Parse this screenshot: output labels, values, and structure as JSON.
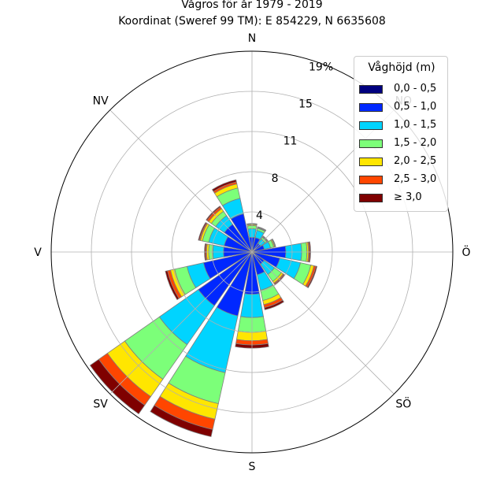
{
  "title_line1": "Vågros för år 1979 - 2019",
  "title_line2": "Koordinat (Sweref 99 TM): E 854229, N 6635608",
  "chart_data": {
    "type": "windrose",
    "direction_labels": [
      "N",
      "NO",
      "Ö",
      "SÖ",
      "S",
      "SV",
      "V",
      "NV"
    ],
    "radial_ticks": [
      "4",
      "8",
      "11",
      "15",
      "19%"
    ],
    "radial_tick_values": [
      3.8,
      7.6,
      11.4,
      15.2,
      19
    ],
    "rmax": 19,
    "grid": true,
    "legend": {
      "title": "Våghöjd (m)",
      "position": "top-right",
      "items": [
        {
          "label": "0,0 - 0,5",
          "color": "#00007f"
        },
        {
          "label": "0,5 - 1,0",
          "color": "#0028ff"
        },
        {
          "label": "1,0 - 1,5",
          "color": "#00d4ff"
        },
        {
          "label": "1,5 - 2,0",
          "color": "#7cff79"
        },
        {
          "label": "2,0 - 2,5",
          "color": "#ffe600"
        },
        {
          "label": "2,5 - 3,0",
          "color": "#ff4600"
        },
        {
          "label": "≥ 3,0",
          "color": "#7f0000"
        }
      ]
    },
    "sectors": [
      {
        "dir": 0,
        "values": [
          0.2,
          1.2,
          0.8,
          0.3,
          0.1,
          0.05,
          0.05
        ]
      },
      {
        "dir": 22.5,
        "values": [
          0.2,
          1.2,
          0.7,
          0.2,
          0.05,
          0.05,
          0.05
        ]
      },
      {
        "dir": 45,
        "values": [
          0.2,
          0.8,
          0.5,
          0.2,
          0.05,
          0.05,
          0.05
        ]
      },
      {
        "dir": 67.5,
        "values": [
          0.2,
          1.0,
          0.6,
          0.3,
          0.1,
          0.05,
          0.05
        ]
      },
      {
        "dir": 90,
        "values": [
          0.2,
          3.0,
          1.5,
          0.5,
          0.15,
          0.1,
          0.1
        ]
      },
      {
        "dir": 112.5,
        "values": [
          0.2,
          2.5,
          2.0,
          1.0,
          0.3,
          0.2,
          0.1
        ]
      },
      {
        "dir": 135,
        "values": [
          0.2,
          1.2,
          1.2,
          0.8,
          0.2,
          0.1,
          0.1
        ]
      },
      {
        "dir": 157.5,
        "values": [
          0.2,
          2.0,
          1.5,
          1.0,
          0.4,
          0.3,
          0.2
        ]
      },
      {
        "dir": 180,
        "values": [
          0.2,
          3.8,
          2.2,
          1.4,
          0.8,
          0.4,
          0.3
        ]
      },
      {
        "dir": 202.5,
        "values": [
          0.2,
          6.0,
          5.5,
          3.0,
          1.5,
          1.0,
          0.7
        ]
      },
      {
        "dir": 225,
        "values": [
          0.2,
          6.0,
          4.5,
          4.0,
          2.0,
          1.0,
          1.0
        ]
      },
      {
        "dir": 247.5,
        "values": [
          0.2,
          4.5,
          1.6,
          1.2,
          0.4,
          0.3,
          0.2
        ]
      },
      {
        "dir": 270,
        "values": [
          0.2,
          2.5,
          1.0,
          0.4,
          0.2,
          0.1,
          0.1
        ]
      },
      {
        "dir": 292.5,
        "values": [
          0.2,
          2.5,
          1.5,
          0.6,
          0.2,
          0.1,
          0.1
        ]
      },
      {
        "dir": 315,
        "values": [
          0.2,
          3.0,
          1.0,
          0.5,
          0.3,
          0.2,
          0.1
        ]
      },
      {
        "dir": 337.5,
        "values": [
          0.2,
          3.5,
          1.5,
          1.0,
          0.4,
          0.2,
          0.2
        ]
      }
    ]
  }
}
